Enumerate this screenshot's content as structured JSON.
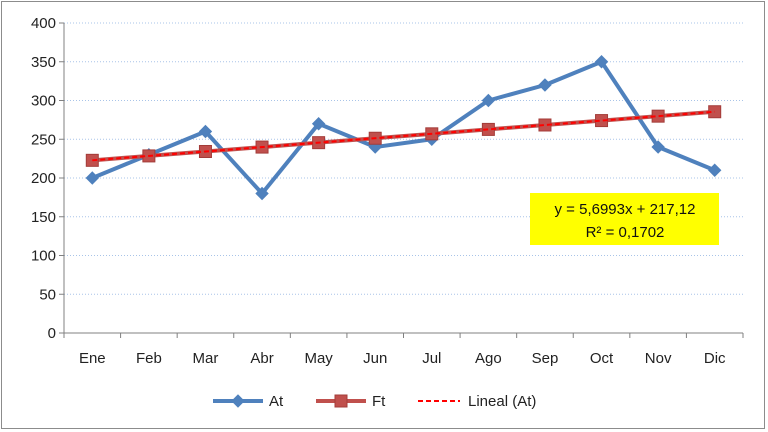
{
  "chart_data": {
    "type": "line",
    "categories": [
      "Ene",
      "Feb",
      "Mar",
      "Abr",
      "May",
      "Jun",
      "Jul",
      "Ago",
      "Sep",
      "Oct",
      "Nov",
      "Dic"
    ],
    "series": [
      {
        "name": "At",
        "values": [
          200,
          230,
          260,
          180,
          270,
          240,
          250,
          300,
          320,
          350,
          240,
          210
        ],
        "color": "#4f81bd",
        "marker": "diamond"
      },
      {
        "name": "Ft",
        "values": [
          222.8,
          228.5,
          234.2,
          239.9,
          245.6,
          251.3,
          257.0,
          262.7,
          268.4,
          274.1,
          279.8,
          285.5
        ],
        "color": "#c0504d",
        "marker": "square"
      }
    ],
    "trendline": {
      "name": "Lineal (At)",
      "slope": 5.6993,
      "intercept": 217.12,
      "color": "#ff0000",
      "style": "dashed"
    },
    "equation": {
      "line1": "y = 5,6993x + 217,12",
      "line2": "R² = 0,1702",
      "background": "#ffff00"
    },
    "ylim": [
      0,
      400
    ],
    "yticks": [
      0,
      50,
      100,
      150,
      200,
      250,
      300,
      350,
      400
    ],
    "ytick_labels": [
      "0",
      "50",
      "100",
      "150",
      "200",
      "250",
      "300",
      "350",
      "400"
    ],
    "grid": true,
    "legend_position": "bottom",
    "legend": [
      "At",
      "Ft",
      "Lineal (At)"
    ],
    "title": "",
    "xlabel": "",
    "ylabel": ""
  }
}
